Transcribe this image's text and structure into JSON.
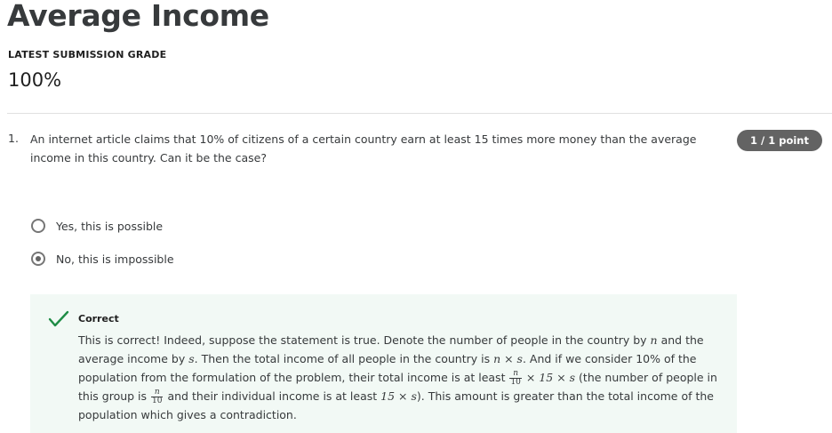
{
  "header": {
    "title": "Average Income",
    "grade_label": "LATEST SUBMISSION GRADE",
    "grade_value": "100%"
  },
  "question": {
    "number": "1.",
    "text": "An internet article claims that 10% of citizens of a certain country earn at least 15 times more money than the average income in this country. Can it be the case?",
    "points": "1 / 1 point",
    "options": [
      {
        "label": "Yes, this is possible",
        "selected": false
      },
      {
        "label": "No, this is impossible",
        "selected": true
      }
    ]
  },
  "feedback": {
    "status": "Correct",
    "icon": "check-icon",
    "accent_color": "#1e8c45",
    "segments": {
      "s1": "This is correct! Indeed, suppose the statement is true. Denote the number of people in the country by ",
      "m1": "n",
      "s2": " and the average income by ",
      "m2": "s",
      "s3": ". Then the total income of all people in the country is ",
      "m3": "n × s",
      "s4": ". And if we consider 10% of the population from the formulation of the problem, their total income is at least ",
      "frac_num": "n",
      "frac_den": "10",
      "m4": " × 15 × s",
      "s5": " (the number of people in this group is ",
      "frac2_num": "n",
      "frac2_den": "10",
      "s6": " and their individual income is at least ",
      "m5": "15 × s",
      "s7": "). This amount is greater than the total income of the population which gives a contradiction."
    }
  }
}
